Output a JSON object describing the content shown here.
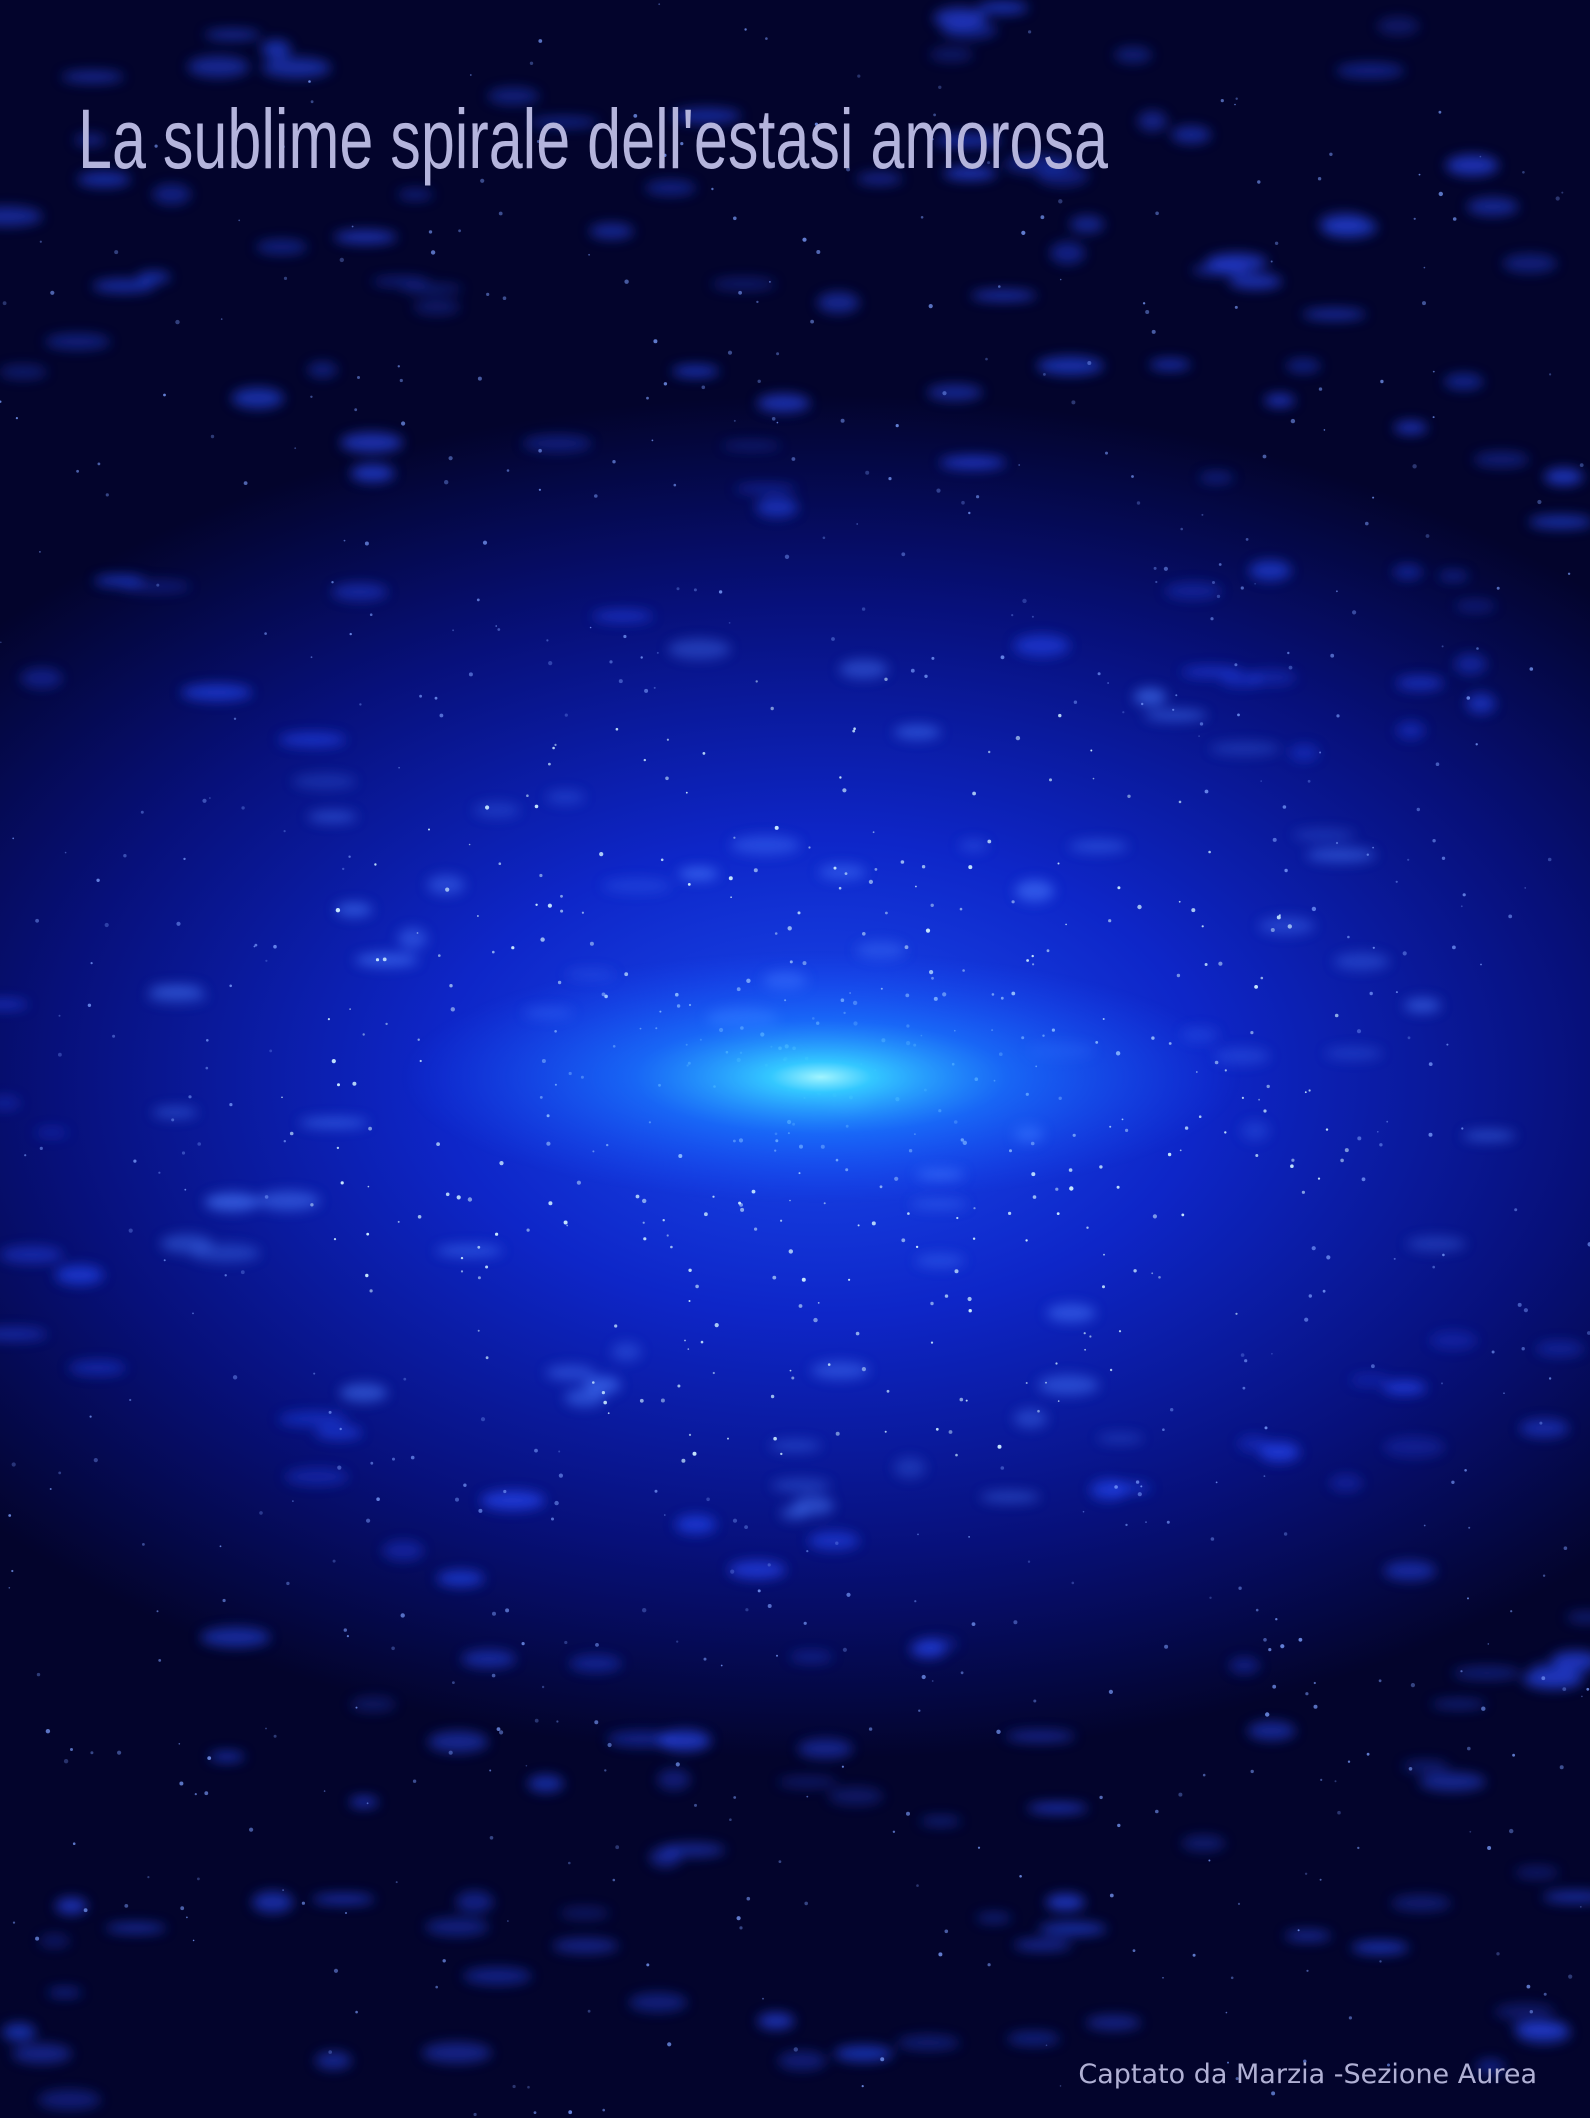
{
  "title": "La sublime spirale dell'estasi amorosa",
  "credit": "Captato da Marzia -Sezione Aurea"
}
